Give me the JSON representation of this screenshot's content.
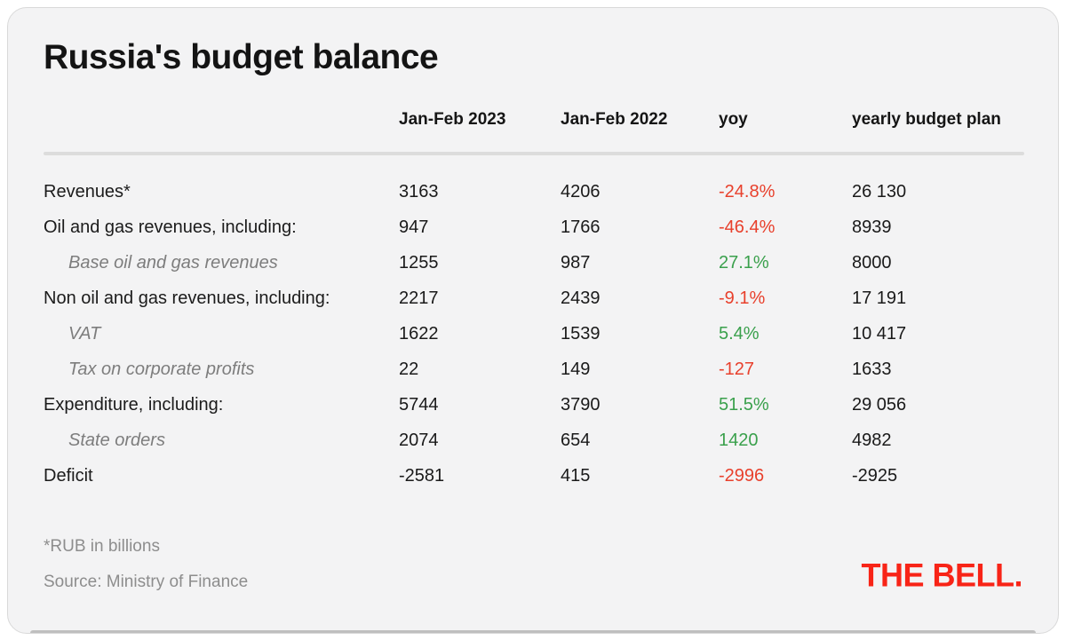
{
  "chart_data": {
    "type": "table",
    "title": "Russia's budget balance",
    "columns": [
      "Jan-Feb 2023",
      "Jan-Feb 2022",
      "yoy",
      "yearly budget plan"
    ],
    "rows": [
      {
        "label": "Revenues*",
        "indent": false,
        "jan_feb_2023": "3163",
        "jan_feb_2022": "4206",
        "yoy": "-24.8%",
        "yoy_trend": "negative",
        "yearly_budget_plan": "26 130"
      },
      {
        "label": "Oil and gas revenues, including:",
        "indent": false,
        "jan_feb_2023": "947",
        "jan_feb_2022": "1766",
        "yoy": "-46.4%",
        "yoy_trend": "negative",
        "yearly_budget_plan": "8939"
      },
      {
        "label": "Base oil and gas revenues",
        "indent": true,
        "jan_feb_2023": "1255",
        "jan_feb_2022": "987",
        "yoy": "27.1%",
        "yoy_trend": "positive",
        "yearly_budget_plan": "8000"
      },
      {
        "label": "Non oil and gas revenues, including:",
        "indent": false,
        "jan_feb_2023": "2217",
        "jan_feb_2022": "2439",
        "yoy": "-9.1%",
        "yoy_trend": "negative",
        "yearly_budget_plan": "17 191"
      },
      {
        "label": "VAT",
        "indent": true,
        "jan_feb_2023": "1622",
        "jan_feb_2022": "1539",
        "yoy": "5.4%",
        "yoy_trend": "positive",
        "yearly_budget_plan": "10 417"
      },
      {
        "label": "Tax on corporate profits",
        "indent": true,
        "jan_feb_2023": "22",
        "jan_feb_2022": "149",
        "yoy": "-127",
        "yoy_trend": "negative",
        "yearly_budget_plan": "1633"
      },
      {
        "label": "Expenditure, including:",
        "indent": false,
        "jan_feb_2023": "5744",
        "jan_feb_2022": "3790",
        "yoy": "51.5%",
        "yoy_trend": "positive",
        "yearly_budget_plan": "29 056"
      },
      {
        "label": "State orders",
        "indent": true,
        "jan_feb_2023": "2074",
        "jan_feb_2022": "654",
        "yoy": "1420",
        "yoy_trend": "positive",
        "yearly_budget_plan": "4982"
      },
      {
        "label": "Deficit",
        "indent": false,
        "jan_feb_2023": "-2581",
        "jan_feb_2022": "415",
        "yoy": "-2996",
        "yoy_trend": "negative",
        "yearly_budget_plan": "-2925"
      }
    ],
    "legend_position": "none",
    "grid": "off"
  },
  "header": {
    "title": "Russia's budget balance"
  },
  "footnotes": {
    "unit_note": "*RUB in billions",
    "source": "Source: Ministry of Finance"
  },
  "logo": {
    "text": "THE BELL."
  },
  "colors": {
    "negative": "#e8402c",
    "positive": "#3aa04c",
    "logo_red": "#f82417",
    "divider": "#dcdcdc",
    "card_bg": "#f3f3f4"
  }
}
